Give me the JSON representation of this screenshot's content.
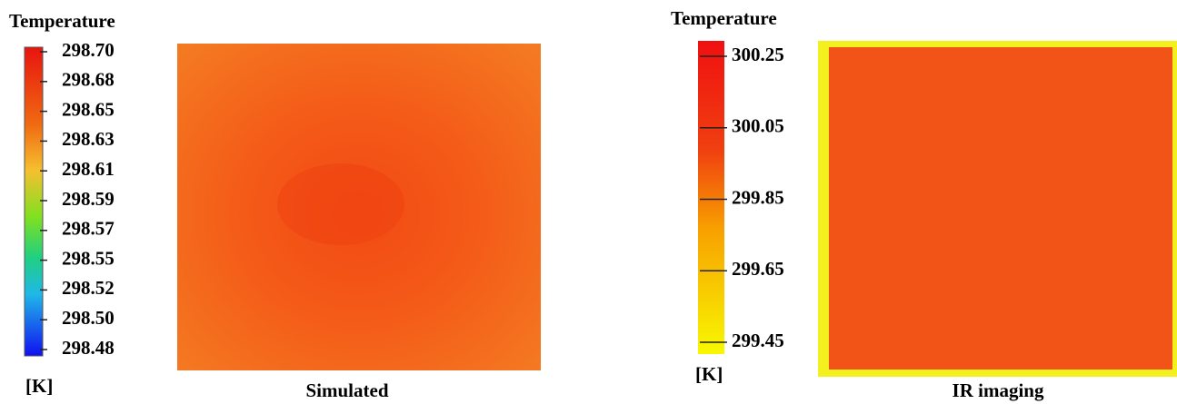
{
  "panels": [
    {
      "colorbar": {
        "title": "Temperature",
        "ticks": [
          "298.70",
          "298.68",
          "298.65",
          "298.63",
          "298.61",
          "298.59",
          "298.57",
          "298.55",
          "298.52",
          "298.50",
          "298.48"
        ],
        "unit": "[K]"
      },
      "caption": "Simulated"
    },
    {
      "colorbar": {
        "title": "Temperature",
        "ticks": [
          "300.25",
          "300.05",
          "299.85",
          "299.65",
          "299.45"
        ],
        "unit": "[K]"
      },
      "caption": "IR imaging"
    }
  ]
}
